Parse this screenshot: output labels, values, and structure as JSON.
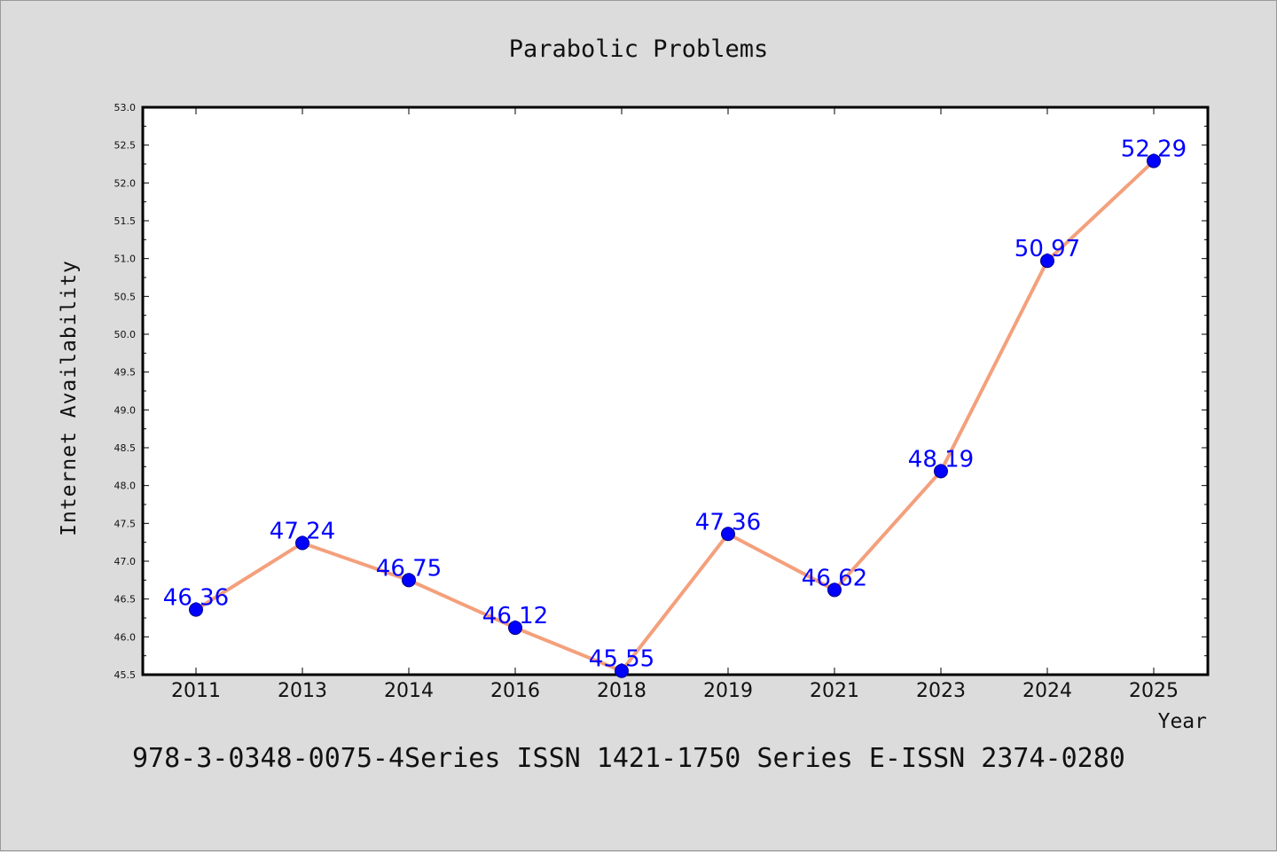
{
  "footer": "978-3-0348-0075-4Series ISSN 1421-1750 Series E-ISSN 2374-0280",
  "chart_data": {
    "type": "line",
    "title": "Parabolic Problems",
    "xlabel": "Year",
    "ylabel": "Internet Availability",
    "categories": [
      "2011",
      "2013",
      "2014",
      "2016",
      "2018",
      "2019",
      "2021",
      "2023",
      "2024",
      "2025"
    ],
    "series": [
      {
        "values": [
          46.36,
          47.24,
          46.75,
          46.12,
          45.55,
          47.36,
          46.62,
          48.19,
          50.97,
          52.29
        ],
        "data_labels": [
          "46.36",
          "47.24",
          "46.75",
          "46.12",
          "45.55",
          "47.36",
          "46.62",
          "48.19",
          "50.97",
          "52.29"
        ],
        "line_color": "#f4a07c",
        "marker_color": "#0000ff"
      }
    ],
    "ylim": [
      45.5,
      53.0
    ],
    "yticks": [
      "45.5",
      "46.0",
      "46.5",
      "47.0",
      "47.5",
      "48.0",
      "48.5",
      "49.0",
      "49.5",
      "50.0",
      "50.5",
      "51.0",
      "51.5",
      "52.0",
      "52.5",
      "53.0"
    ],
    "grid": false,
    "legend": "none",
    "background": "#dcdcdc",
    "plot_background": "#ffffff"
  }
}
